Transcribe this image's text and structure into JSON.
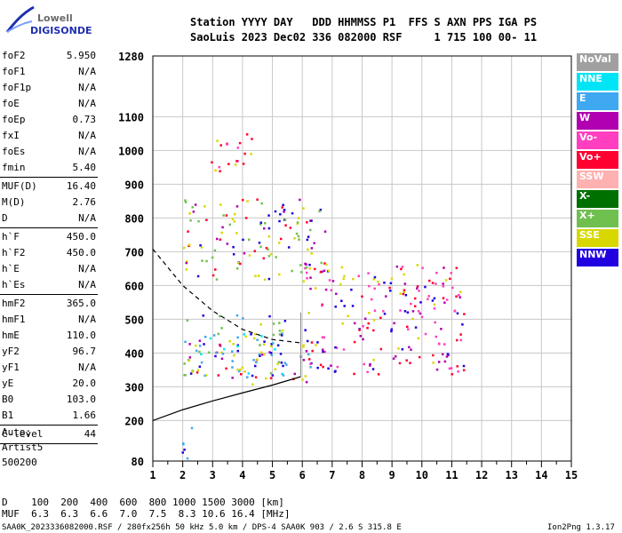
{
  "logo": {
    "line1": "Lowell",
    "line2": "DIGISONDE"
  },
  "header": {
    "row1": "Station YYYY DAY   DDD HHMMSS P1  FFS S AXN PPS IGA PS",
    "row2": "SaoLuis 2023 Dec02 336 082000 RSF     1 715 100 00- 11"
  },
  "params": [
    {
      "label": "foF2",
      "value": "5.950"
    },
    {
      "label": "foF1",
      "value": "N/A"
    },
    {
      "label": "foF1p",
      "value": "N/A"
    },
    {
      "label": "foE",
      "value": "N/A"
    },
    {
      "label": "foEp",
      "value": "0.73"
    },
    {
      "label": "fxI",
      "value": "N/A"
    },
    {
      "label": "foEs",
      "value": "N/A"
    },
    {
      "label": "fmin",
      "value": "5.40",
      "sep_after": true
    },
    {
      "label": "MUF(D)",
      "value": "16.40"
    },
    {
      "label": "M(D)",
      "value": "2.76"
    },
    {
      "label": "D",
      "value": "N/A",
      "sep_after": true
    },
    {
      "label": "h`F",
      "value": "450.0"
    },
    {
      "label": "h`F2",
      "value": "450.0"
    },
    {
      "label": "h`E",
      "value": "N/A"
    },
    {
      "label": "h`Es",
      "value": "N/A",
      "sep_after": true
    },
    {
      "label": "hmF2",
      "value": "365.0"
    },
    {
      "label": "hmF1",
      "value": "N/A"
    },
    {
      "label": "hmE",
      "value": "110.0"
    },
    {
      "label": "yF2",
      "value": "96.7"
    },
    {
      "label": "yF1",
      "value": "N/A"
    },
    {
      "label": "yE",
      "value": "20.0"
    },
    {
      "label": "B0",
      "value": "103.0"
    },
    {
      "label": "B1",
      "value": "1.66",
      "sep_after": true
    },
    {
      "label": "C-level",
      "value": "44",
      "sep_after": true
    }
  ],
  "auto": {
    "line1": "Auto:",
    "line2": "Artist5",
    "line3": "500200"
  },
  "legend": [
    {
      "label": "NoVal",
      "color": "#a0a0a0"
    },
    {
      "label": "NNE",
      "color": "#00e5f5"
    },
    {
      "label": "E",
      "color": "#3ea8f0"
    },
    {
      "label": "W",
      "color": "#b000b0"
    },
    {
      "label": "Vo-",
      "color": "#ff3fbf"
    },
    {
      "label": "Vo+",
      "color": "#ff0030"
    },
    {
      "label": "SSW",
      "color": "#ffb0b0"
    },
    {
      "label": "X-",
      "color": "#007000"
    },
    {
      "label": "X+",
      "color": "#70c050"
    },
    {
      "label": "SSE",
      "color": "#d8d800"
    },
    {
      "label": "NNW",
      "color": "#2000e0"
    }
  ],
  "bottom": {
    "d_row": "D    100  200  400  600  800 1000 1500 3000 [km]",
    "muf_row": "MUF  6.3  6.3  6.6  7.0  7.5  8.3 10.6 16.4 [MHz]"
  },
  "footer": {
    "left": "SAA0K_2023336082000.RSF / 280fx256h 50 kHz 5.0 km / DPS-4 SAA0K 903 / 2.6 S 315.8 E",
    "right": "Ion2Png 1.3.17"
  },
  "chart_data": {
    "type": "scatter",
    "xlim": [
      1,
      15
    ],
    "ylim": [
      80,
      1280
    ],
    "x_ticks": [
      1,
      2,
      3,
      4,
      5,
      6,
      7,
      8,
      9,
      10,
      11,
      12,
      13,
      14,
      15
    ],
    "y_ticks": [
      80,
      200,
      300,
      400,
      500,
      600,
      700,
      800,
      900,
      1000,
      1100,
      1280
    ],
    "clusters": [
      {
        "name": "F2 o-trace",
        "x": [
          2.2,
          6.5
        ],
        "y": [
          310,
          440
        ],
        "colors": [
          "#2000e0",
          "#b000b0",
          "#ff0030",
          "#3ea8f0",
          "#d8d800"
        ]
      },
      {
        "name": "F2 x-trace",
        "x": [
          6.0,
          11.4
        ],
        "y": [
          340,
          670
        ],
        "colors": [
          "#ff0030",
          "#b000b0",
          "#2000e0",
          "#ff3fbf",
          "#d8d800"
        ]
      },
      {
        "name": "F2 upper echo",
        "x": [
          2.0,
          5.5
        ],
        "y": [
          330,
          520
        ],
        "colors": [
          "#3ea8f0",
          "#00e5f5",
          "#d8d800",
          "#70c050",
          "#2000e0"
        ]
      },
      {
        "name": "Multihop trace",
        "x": [
          2.0,
          6.8
        ],
        "y": [
          620,
          860
        ],
        "colors": [
          "#2000e0",
          "#ff0030",
          "#d8d800",
          "#b000b0",
          "#70c050"
        ]
      },
      {
        "name": "Third hop",
        "x": [
          2.9,
          4.3
        ],
        "y": [
          940,
          1060
        ],
        "colors": [
          "#ff0030",
          "#d8d800",
          "#ff3fbf"
        ]
      },
      {
        "name": "Low echoes",
        "x": [
          1.9,
          2.3
        ],
        "y": [
          80,
          215
        ],
        "colors": [
          "#2000e0",
          "#3ea8f0"
        ]
      }
    ],
    "profile_solid": {
      "x": [
        1.0,
        2.0,
        3.0,
        4.0,
        5.0,
        5.95
      ],
      "y": [
        200,
        232,
        258,
        282,
        305,
        330
      ]
    },
    "profile_dashed": {
      "x": [
        1.0,
        2.0,
        3.0,
        4.0,
        5.0,
        5.95
      ],
      "y": [
        708,
        600,
        525,
        470,
        440,
        430
      ]
    }
  }
}
